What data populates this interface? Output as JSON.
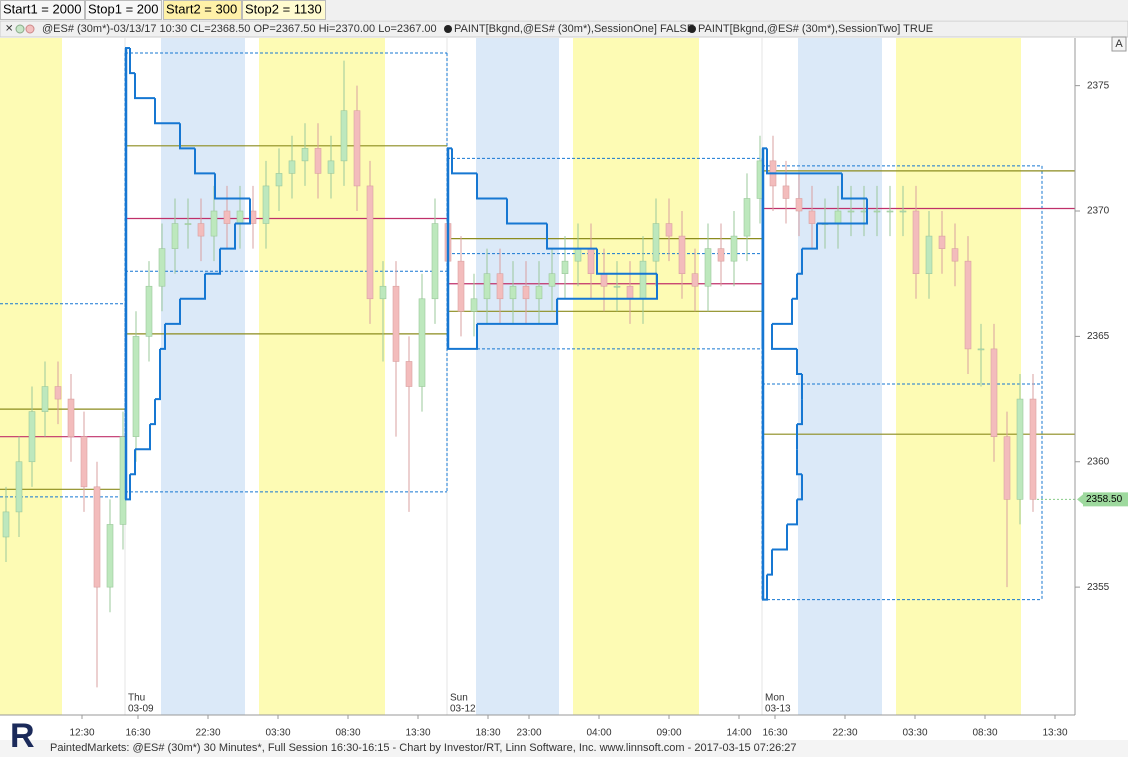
{
  "toolbar": [
    "Start1 = 2000",
    "Stop1 = 200",
    "Start2 = 300",
    "Stop2 = 1130"
  ],
  "info": [
    "@ES# (30m*)-03/13/17 10:30 CL=2368.50 OP=2367.50 Hi=2370.00 Lo=2367.00",
    "PAINT[Bkgnd,@ES# (30m*),SessionOne] FALSE",
    "PAINT[Bkgnd,@ES# (30m*),SessionTwo] TRUE"
  ],
  "button": "A",
  "logo": "R",
  "footer": "PaintedMarkets: @ES# (30m*) 30 Minutes*, Full Session 16:30-16:15 - Chart by Investor/RT, Linn Software, Inc. www.linnsoft.com - 2017-03-15 07:26:27",
  "chart_data": {
    "type": "candlestick",
    "open": [
      2357,
      2358,
      2360,
      2362,
      2363,
      2362.5,
      2361,
      2359,
      2355,
      2357.5,
      2361,
      2365,
      2367,
      2368.5,
      2369.5,
      2369.5,
      2369,
      2370,
      2369.5,
      2370,
      2369.5,
      2371,
      2371.5,
      2372,
      2372.5,
      2371.5,
      2372,
      2374,
      2371,
      2366.5,
      2367,
      2364,
      2363,
      2366.5,
      2369.5,
      2368,
      2366,
      2366.5,
      2367.5,
      2366.5,
      2367,
      2366.5,
      2367,
      2367.5,
      2368,
      2368.5,
      2367.5,
      2367,
      2367,
      2366.5,
      2368,
      2369.5,
      2369,
      2367.5,
      2367,
      2368.5,
      2368,
      2369,
      2370.5,
      2372,
      2371,
      2370.5,
      2370,
      2369.5,
      2369.5,
      2370,
      2370,
      2370,
      2370,
      2370,
      2370,
      2367.5,
      2369,
      2368.5,
      2368,
      2364.5,
      2364.5,
      2361,
      2358.5,
      2362.5
    ],
    "high": [
      2359,
      2361,
      2363,
      2364,
      2364,
      2363.5,
      2362,
      2360,
      2358.5,
      2362,
      2366,
      2368,
      2369.5,
      2370.5,
      2370.5,
      2370.5,
      2371,
      2371,
      2371,
      2371,
      2372,
      2372.5,
      2373,
      2373.5,
      2373.5,
      2373,
      2376,
      2375,
      2372,
      2368,
      2368,
      2365,
      2367.5,
      2370.5,
      2370.5,
      2369,
      2367.5,
      2368.5,
      2368.5,
      2368,
      2368,
      2368,
      2368.5,
      2369,
      2369.5,
      2369.5,
      2368.5,
      2368,
      2368,
      2369,
      2370.5,
      2370.5,
      2370,
      2368.5,
      2369.5,
      2369.5,
      2370,
      2371.5,
      2373,
      2373,
      2372,
      2371.5,
      2371,
      2370.5,
      2371,
      2371,
      2371,
      2371,
      2371,
      2371,
      2371,
      2370,
      2370,
      2369.5,
      2369,
      2365.5,
      2365.5,
      2362,
      2363.5,
      2363.5
    ],
    "low": [
      2356,
      2357,
      2359,
      2361,
      2361.5,
      2360,
      2358,
      2351,
      2354,
      2356.5,
      2360,
      2364,
      2366,
      2367.5,
      2368.5,
      2368,
      2368,
      2368.5,
      2368.5,
      2368.5,
      2368.5,
      2370,
      2370.5,
      2371,
      2370.5,
      2370.5,
      2371,
      2370,
      2365.5,
      2364,
      2361,
      2358,
      2362,
      2365.5,
      2367,
      2365,
      2365,
      2365.5,
      2365.5,
      2365.5,
      2365.5,
      2365.5,
      2366,
      2366.5,
      2367,
      2366.5,
      2366,
      2366,
      2365.5,
      2365.5,
      2367,
      2368,
      2366.5,
      2366,
      2366,
      2367,
      2367,
      2368,
      2369.5,
      2370,
      2369.5,
      2369,
      2368.5,
      2368.5,
      2368.5,
      2369,
      2369,
      2369,
      2369,
      2369,
      2366.5,
      2366.5,
      2367.5,
      2367,
      2363.5,
      2363,
      2360,
      2355,
      2357.5,
      2358
    ],
    "close": [
      2358,
      2360,
      2362,
      2363,
      2362.5,
      2361,
      2359,
      2355,
      2357.5,
      2361,
      2365,
      2367,
      2368.5,
      2369.5,
      2369.5,
      2369,
      2370,
      2369.5,
      2370,
      2369.5,
      2371,
      2371.5,
      2372,
      2372.5,
      2371.5,
      2372,
      2374,
      2371,
      2366.5,
      2367,
      2364,
      2363,
      2366.5,
      2369.5,
      2368,
      2366,
      2366.5,
      2367.5,
      2366.5,
      2367,
      2366.5,
      2367,
      2367.5,
      2368,
      2368.5,
      2367.5,
      2367,
      2367,
      2366.5,
      2368,
      2369.5,
      2369,
      2367.5,
      2367,
      2368.5,
      2368,
      2369,
      2370.5,
      2372,
      2371,
      2370.5,
      2370,
      2369.5,
      2369.5,
      2370,
      2370,
      2370,
      2370,
      2370,
      2370,
      2367.5,
      2369,
      2368.5,
      2368,
      2364.5,
      2364.5,
      2361,
      2358.5,
      2362.5,
      2358.5
    ],
    "up_color": "#bde8bd",
    "down_color": "#f3bcbc",
    "profile_color": "#1677d2",
    "poc_color": "#c0306a",
    "value_area_color": "#8c8c1e",
    "range_color": "#1677d2",
    "ylim": [
      2349.9,
      2376.9
    ],
    "yticks": [
      2355,
      2360,
      2365,
      2370,
      2375
    ],
    "last": {
      "value": 2358.5,
      "label": "2358.50"
    },
    "x_labels": [
      "12:30",
      "16:30",
      "22:30",
      "03:30",
      "08:30",
      "13:30",
      "18:30",
      "23:00",
      "04:00",
      "09:00",
      "14:00",
      "16:30",
      "22:30",
      "03:30",
      "08:30",
      "13:30"
    ],
    "date_labels": [
      [
        "Thu",
        "03-09"
      ],
      [
        "Sun",
        "03-12"
      ],
      [
        "Mon",
        "03-13"
      ]
    ],
    "sessions": [
      {
        "high": 2366.3,
        "low": 2358.6,
        "value_area_high": 2362.1,
        "poc": 2361.0,
        "value_area_low": 2358.9
      },
      {
        "high": 2376.3,
        "low": 2358.8,
        "inner": 2367.6,
        "value_area_high": 2372.6,
        "poc": 2369.7,
        "value_area_low": 2365.1,
        "profile": {
          "low": 2359,
          "counts": [
            1,
            2,
            5,
            6,
            7,
            7,
            8,
            11,
            16,
            19,
            22,
            25,
            18,
            14,
            11,
            6,
            2,
            1
          ]
        }
      },
      {
        "high": 2372.1,
        "low": 2364.5,
        "inner": 2368.3,
        "value_area_high": 2368.9,
        "poc": 2367.1,
        "value_area_low": 2366.0,
        "profile": {
          "low": 2365,
          "counts": [
            6,
            22,
            42,
            30,
            20,
            12,
            6,
            1
          ]
        }
      },
      {
        "high": 2371.8,
        "low": 2354.5,
        "inner": 2363.1,
        "value_area_high": 2371.6,
        "poc": 2370.1,
        "value_area_low": 2361.1,
        "profile": {
          "low": 2355,
          "counts": [
            1,
            2,
            5,
            7,
            8,
            7,
            7,
            8,
            8,
            7,
            2,
            6,
            7,
            8,
            11,
            21,
            16,
            1
          ]
        }
      }
    ]
  }
}
